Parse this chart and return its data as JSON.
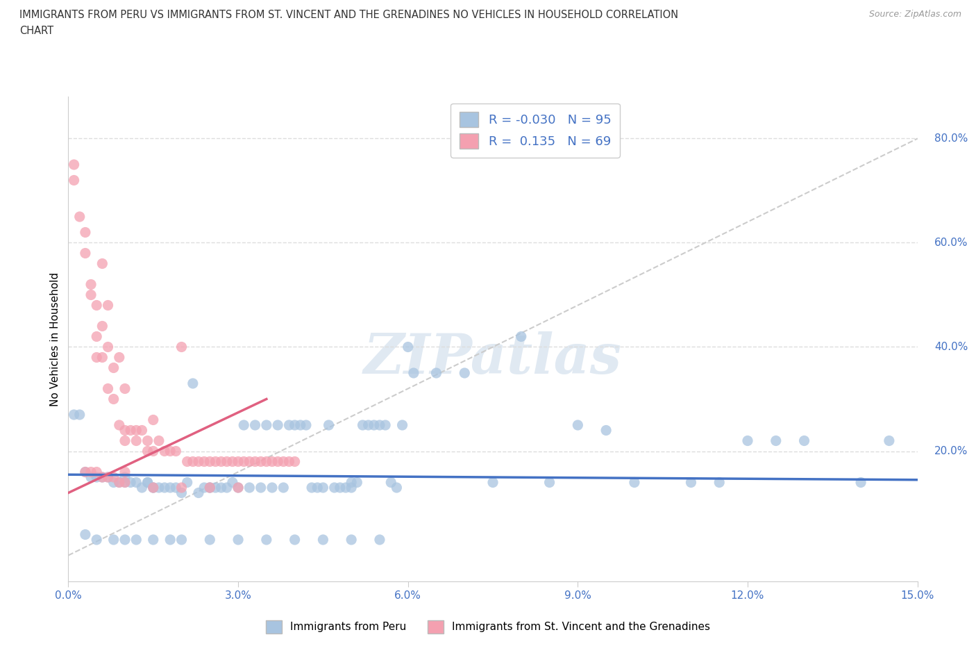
{
  "title_line1": "IMMIGRANTS FROM PERU VS IMMIGRANTS FROM ST. VINCENT AND THE GRENADINES NO VEHICLES IN HOUSEHOLD CORRELATION",
  "title_line2": "CHART",
  "source": "Source: ZipAtlas.com",
  "ylabel": "No Vehicles in Household",
  "xlim": [
    0.0,
    15.0
  ],
  "ylim": [
    -5.0,
    88.0
  ],
  "right_yticks": [
    20.0,
    40.0,
    60.0,
    80.0
  ],
  "right_ytick_labels": [
    "20.0%",
    "40.0%",
    "60.0%",
    "80.0%"
  ],
  "peru_color": "#a8c4e0",
  "svg_color": "#f4a0b0",
  "peru_R": -0.03,
  "peru_N": 95,
  "svg_R": 0.135,
  "svg_N": 69,
  "legend_peru_label": "Immigrants from Peru",
  "legend_svg_label": "Immigrants from St. Vincent and the Grenadines",
  "peru_scatter": [
    [
      0.1,
      27
    ],
    [
      0.2,
      27
    ],
    [
      0.3,
      16
    ],
    [
      0.4,
      15
    ],
    [
      0.5,
      15
    ],
    [
      0.6,
      15
    ],
    [
      0.7,
      15
    ],
    [
      0.8,
      14
    ],
    [
      0.9,
      14
    ],
    [
      1.0,
      15
    ],
    [
      1.0,
      14
    ],
    [
      1.1,
      14
    ],
    [
      1.2,
      14
    ],
    [
      1.3,
      13
    ],
    [
      1.4,
      14
    ],
    [
      1.4,
      14
    ],
    [
      1.5,
      13
    ],
    [
      1.5,
      13
    ],
    [
      1.6,
      13
    ],
    [
      1.7,
      13
    ],
    [
      1.8,
      13
    ],
    [
      1.9,
      13
    ],
    [
      2.0,
      12
    ],
    [
      2.1,
      14
    ],
    [
      2.2,
      33
    ],
    [
      2.3,
      12
    ],
    [
      2.4,
      13
    ],
    [
      2.5,
      13
    ],
    [
      2.5,
      13
    ],
    [
      2.6,
      13
    ],
    [
      2.7,
      13
    ],
    [
      2.8,
      13
    ],
    [
      2.9,
      14
    ],
    [
      3.0,
      13
    ],
    [
      3.1,
      25
    ],
    [
      3.2,
      13
    ],
    [
      3.3,
      25
    ],
    [
      3.4,
      13
    ],
    [
      3.5,
      25
    ],
    [
      3.6,
      13
    ],
    [
      3.7,
      25
    ],
    [
      3.8,
      13
    ],
    [
      3.9,
      25
    ],
    [
      4.0,
      25
    ],
    [
      4.1,
      25
    ],
    [
      4.2,
      25
    ],
    [
      4.3,
      13
    ],
    [
      4.4,
      13
    ],
    [
      4.5,
      13
    ],
    [
      4.6,
      25
    ],
    [
      4.7,
      13
    ],
    [
      4.8,
      13
    ],
    [
      4.9,
      13
    ],
    [
      5.0,
      13
    ],
    [
      5.0,
      14
    ],
    [
      5.1,
      14
    ],
    [
      5.2,
      25
    ],
    [
      5.3,
      25
    ],
    [
      5.4,
      25
    ],
    [
      5.5,
      25
    ],
    [
      5.6,
      25
    ],
    [
      5.7,
      14
    ],
    [
      5.8,
      13
    ],
    [
      5.9,
      25
    ],
    [
      6.0,
      40
    ],
    [
      6.1,
      35
    ],
    [
      6.5,
      35
    ],
    [
      7.0,
      35
    ],
    [
      7.5,
      14
    ],
    [
      8.0,
      42
    ],
    [
      8.5,
      14
    ],
    [
      9.0,
      25
    ],
    [
      9.5,
      24
    ],
    [
      10.0,
      14
    ],
    [
      11.0,
      14
    ],
    [
      11.5,
      14
    ],
    [
      12.0,
      22
    ],
    [
      12.5,
      22
    ],
    [
      13.0,
      22
    ],
    [
      14.0,
      14
    ],
    [
      14.5,
      22
    ],
    [
      0.3,
      4
    ],
    [
      0.5,
      3
    ],
    [
      0.8,
      3
    ],
    [
      1.0,
      3
    ],
    [
      1.2,
      3
    ],
    [
      1.5,
      3
    ],
    [
      1.8,
      3
    ],
    [
      2.0,
      3
    ],
    [
      2.5,
      3
    ],
    [
      3.0,
      3
    ],
    [
      3.5,
      3
    ],
    [
      4.0,
      3
    ],
    [
      4.5,
      3
    ],
    [
      5.0,
      3
    ],
    [
      5.5,
      3
    ]
  ],
  "svg_scatter": [
    [
      0.1,
      75
    ],
    [
      0.1,
      72
    ],
    [
      0.2,
      65
    ],
    [
      0.3,
      62
    ],
    [
      0.3,
      58
    ],
    [
      0.4,
      52
    ],
    [
      0.4,
      50
    ],
    [
      0.5,
      48
    ],
    [
      0.5,
      42
    ],
    [
      0.5,
      38
    ],
    [
      0.6,
      56
    ],
    [
      0.6,
      44
    ],
    [
      0.6,
      38
    ],
    [
      0.7,
      48
    ],
    [
      0.7,
      40
    ],
    [
      0.7,
      32
    ],
    [
      0.8,
      36
    ],
    [
      0.8,
      30
    ],
    [
      0.9,
      38
    ],
    [
      0.9,
      25
    ],
    [
      1.0,
      32
    ],
    [
      1.0,
      24
    ],
    [
      1.0,
      22
    ],
    [
      1.0,
      16
    ],
    [
      1.1,
      24
    ],
    [
      1.2,
      24
    ],
    [
      1.2,
      22
    ],
    [
      1.3,
      24
    ],
    [
      1.4,
      22
    ],
    [
      1.4,
      20
    ],
    [
      1.5,
      26
    ],
    [
      1.5,
      20
    ],
    [
      1.6,
      22
    ],
    [
      1.7,
      20
    ],
    [
      1.8,
      20
    ],
    [
      1.9,
      20
    ],
    [
      2.0,
      40
    ],
    [
      2.1,
      18
    ],
    [
      2.2,
      18
    ],
    [
      2.3,
      18
    ],
    [
      2.4,
      18
    ],
    [
      2.5,
      18
    ],
    [
      2.6,
      18
    ],
    [
      2.7,
      18
    ],
    [
      2.8,
      18
    ],
    [
      2.9,
      18
    ],
    [
      3.0,
      18
    ],
    [
      3.1,
      18
    ],
    [
      3.2,
      18
    ],
    [
      3.3,
      18
    ],
    [
      3.4,
      18
    ],
    [
      3.5,
      18
    ],
    [
      3.6,
      18
    ],
    [
      3.7,
      18
    ],
    [
      3.8,
      18
    ],
    [
      3.9,
      18
    ],
    [
      4.0,
      18
    ],
    [
      0.3,
      16
    ],
    [
      0.4,
      16
    ],
    [
      0.5,
      16
    ],
    [
      0.6,
      15
    ],
    [
      0.7,
      15
    ],
    [
      0.8,
      15
    ],
    [
      0.9,
      14
    ],
    [
      1.0,
      14
    ],
    [
      1.5,
      13
    ],
    [
      2.0,
      13
    ],
    [
      2.5,
      13
    ],
    [
      3.0,
      13
    ]
  ],
  "watermark": "ZIPatlas",
  "diag_line_color": "#cccccc",
  "trend_peru_color": "#4472c4",
  "trend_svg_color": "#e06080",
  "grid_color": "#dddddd",
  "title_color": "#333333",
  "axis_label_color": "#4472c4"
}
